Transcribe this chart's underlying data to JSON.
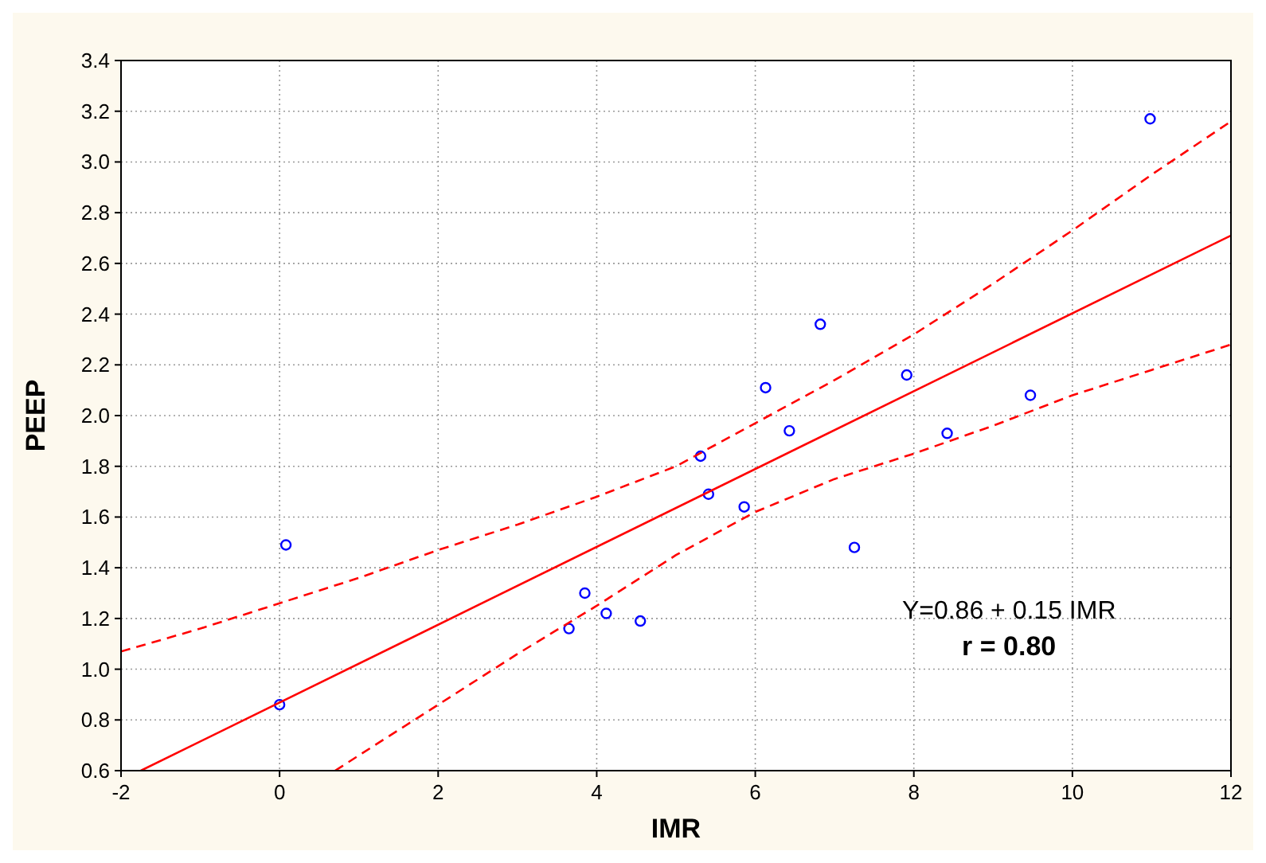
{
  "chart_data": {
    "type": "scatter",
    "xlabel": "IMR",
    "ylabel": "PEEP",
    "xlim": [
      -2,
      12
    ],
    "xticks": [
      -2,
      0,
      2,
      4,
      6,
      8,
      10,
      12
    ],
    "ylim": [
      0.6,
      3.4
    ],
    "yticks": [
      {
        "value": 0.6,
        "label": "0.6"
      },
      {
        "value": 0.8,
        "label": "0.8"
      },
      {
        "value": 1.0,
        "label": "1.0"
      },
      {
        "value": 1.2,
        "label": "1.2"
      },
      {
        "value": 1.4,
        "label": "1.4"
      },
      {
        "value": 1.6,
        "label": "1.6"
      },
      {
        "value": 1.8,
        "label": "1.8"
      },
      {
        "value": 2.0,
        "label": "2.0"
      },
      {
        "value": 2.2,
        "label": "2.2"
      },
      {
        "value": 2.4,
        "label": "2.4"
      },
      {
        "value": 2.6,
        "label": "2.6"
      },
      {
        "value": 2.8,
        "label": "2.8"
      },
      {
        "value": 3.0,
        "label": "3.0"
      },
      {
        "value": 3.2,
        "label": "3.2"
      },
      {
        "value": 3.4,
        "label": "3.4"
      }
    ],
    "grid": true,
    "series": [
      {
        "color": "#0000ff",
        "marker": "circle",
        "x": [
          0,
          0.08,
          3.65,
          3.85,
          4.12,
          4.55,
          5.31,
          5.41,
          5.86,
          6.13,
          6.43,
          6.82,
          7.25,
          7.91,
          8.42,
          9.47,
          10.98
        ],
        "values": [
          0.86,
          1.49,
          1.16,
          1.3,
          1.22,
          1.19,
          1.84,
          1.69,
          1.64,
          2.11,
          1.94,
          2.36,
          1.48,
          2.16,
          1.93,
          2.08,
          3.17
        ]
      },
      {
        "type": "line",
        "color": "#ff0000",
        "line_style": "solid",
        "x": [
          -1.75,
          12
        ],
        "values": [
          0.6,
          2.71
        ]
      },
      {
        "type": "line",
        "color": "#ff0000",
        "line_style": "dashed",
        "x": [
          -2,
          -1,
          0,
          1,
          2,
          3,
          4,
          5,
          6,
          7,
          8,
          9,
          10,
          11,
          12
        ],
        "values": [
          1.07,
          1.16,
          1.26,
          1.36,
          1.47,
          1.57,
          1.68,
          1.8,
          1.97,
          2.14,
          2.32,
          2.52,
          2.73,
          2.95,
          3.16
        ]
      },
      {
        "type": "line",
        "color": "#ff0000",
        "line_style": "dashed",
        "x": [
          0.7,
          1,
          2,
          3,
          4,
          5,
          6,
          7,
          8,
          9,
          10,
          11,
          12
        ],
        "values": [
          0.6,
          0.66,
          0.86,
          1.06,
          1.25,
          1.45,
          1.62,
          1.75,
          1.85,
          1.96,
          2.08,
          2.18,
          2.28
        ]
      }
    ],
    "annotations": [
      "Y=0.86 + 0.15 IMR",
      "r = 0.80"
    ]
  }
}
